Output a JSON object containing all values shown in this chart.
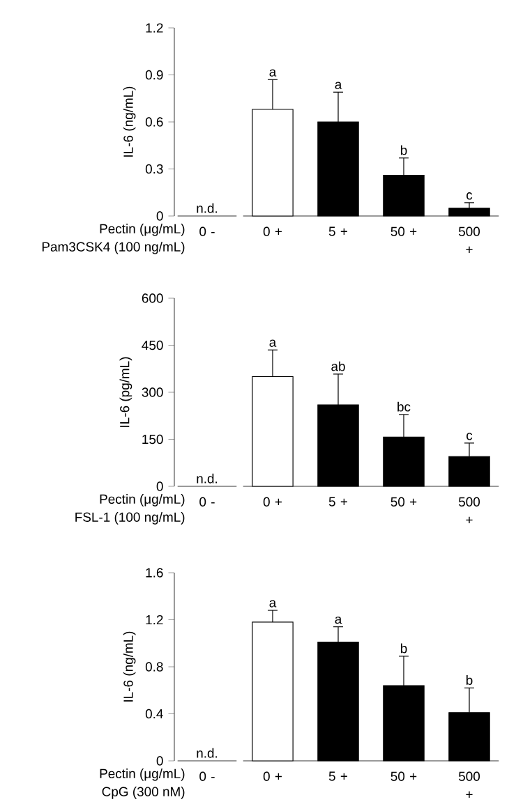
{
  "chart_data": [
    {
      "type": "bar",
      "categories": [
        "0 -",
        "0 +",
        "5 +",
        "50 +",
        "500 +"
      ],
      "values": [
        null,
        0.68,
        0.6,
        0.26,
        0.05
      ],
      "colors": [
        null,
        "#ffffff",
        "#000000",
        "#000000",
        "#000000"
      ],
      "errors": [
        null,
        0.19,
        0.19,
        0.11,
        0.035
      ],
      "value_labels": [
        null,
        "a",
        "a",
        "b",
        "c"
      ],
      "ylabel": "IL-6 (ng/mL)",
      "ylim": [
        0,
        1.2
      ],
      "yticks": [
        0,
        0.3,
        0.6,
        0.9,
        1.2
      ],
      "annotations": [
        "Pectin (μg/mL)",
        "Pam3CSK4 (100 ng/mL)",
        "n.d."
      ]
    },
    {
      "type": "bar",
      "categories": [
        "0 -",
        "0 +",
        "5 +",
        "50 +",
        "500 +"
      ],
      "values": [
        null,
        350,
        260,
        157,
        95
      ],
      "colors": [
        null,
        "#ffffff",
        "#000000",
        "#000000",
        "#000000"
      ],
      "errors": [
        null,
        85,
        98,
        72,
        43
      ],
      "value_labels": [
        null,
        "a",
        "ab",
        "bc",
        "c"
      ],
      "ylabel": "IL-6 (pg/mL)",
      "ylim": [
        0,
        600
      ],
      "yticks": [
        0,
        150,
        300,
        450,
        600
      ],
      "annotations": [
        "Pectin (μg/mL)",
        "FSL-1 (100 ng/mL)",
        "n.d."
      ]
    },
    {
      "type": "bar",
      "categories": [
        "0 -",
        "0 +",
        "5 +",
        "50 +",
        "500 +"
      ],
      "values": [
        null,
        1.18,
        1.01,
        0.64,
        0.41
      ],
      "colors": [
        null,
        "#ffffff",
        "#000000",
        "#000000",
        "#000000"
      ],
      "errors": [
        null,
        0.1,
        0.13,
        0.25,
        0.21
      ],
      "value_labels": [
        null,
        "a",
        "a",
        "b",
        "b"
      ],
      "ylabel": "IL-6 (ng/mL)",
      "ylim": [
        0,
        1.6
      ],
      "yticks": [
        0,
        0.4,
        0.8,
        1.2,
        1.6
      ],
      "annotations": [
        "Pectin (μg/mL)",
        "CpG (300 nM)",
        "n.d."
      ]
    }
  ]
}
